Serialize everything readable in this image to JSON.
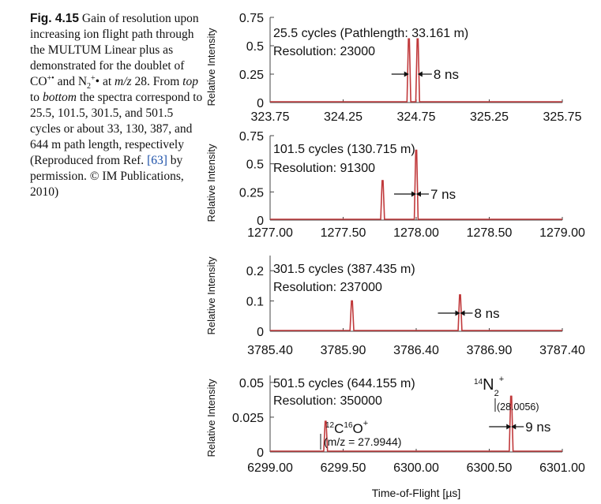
{
  "caption": {
    "label": "Fig. 4.15",
    "part1": "Gain of resolution upon increasing ion flight path through the MULTUM Linear plus as demonstrated for the doublet of CO",
    "sup1": "+•",
    "part2": " and N",
    "sub2": "2",
    "sup2": "+",
    "part3": "• at ",
    "mz": "m/z",
    "part4": " 28. From ",
    "top": "top",
    "part5": " to ",
    "bottom": "bottom",
    "part6": " the spectra correspond to 25.5, 101.5, 301.5, and 501.5 cycles or about 33, 130, 387, and 644 m path length, respectively (Reproduced from Ref. ",
    "ref": "[63]",
    "part7": " by permission. © IM Publications, 2010)"
  },
  "colors": {
    "trace": "#c0393b",
    "axis": "#444444"
  },
  "chart_data": [
    {
      "type": "line",
      "ylabel": "Relative Intensity",
      "xlim": [
        323.75,
        325.75
      ],
      "ylim": [
        0,
        0.75
      ],
      "xticks": [
        "323.75",
        "324.25",
        "324.75",
        "325.25",
        "325.75"
      ],
      "yticks": [
        "0",
        "0.25",
        "0.5",
        "0.75"
      ],
      "annotation": [
        "25.5 cycles (Pathlength: 33.161 m)",
        "Resolution: 23000"
      ],
      "peaks": [
        {
          "x": 324.7,
          "y": 0.56
        },
        {
          "x": 324.76,
          "y": 0.56
        }
      ],
      "gap_label": "8 ns"
    },
    {
      "type": "line",
      "ylabel": "Relative Intensity",
      "xlim": [
        1277.0,
        1279.0
      ],
      "ylim": [
        0,
        0.75
      ],
      "xticks": [
        "1277.00",
        "1277.50",
        "1278.00",
        "1278.50",
        "1279.00"
      ],
      "yticks": [
        "0",
        "0.25",
        "0.5",
        "0.75"
      ],
      "annotation": [
        "101.5 cycles  (130.715 m)",
        "Resolution: 91300"
      ],
      "peaks": [
        {
          "x": 1277.77,
          "y": 0.35
        },
        {
          "x": 1278.0,
          "y": 0.62
        }
      ],
      "gap_label": "7 ns"
    },
    {
      "type": "line",
      "ylabel": "Relative Intensity",
      "xlim": [
        3785.4,
        3787.4
      ],
      "ylim": [
        0,
        0.25
      ],
      "xticks": [
        "3785.40",
        "3785.90",
        "3786.40",
        "3786.90",
        "3787.40"
      ],
      "yticks": [
        "0",
        "0.1",
        "0.2"
      ],
      "annotation": [
        "301.5 cycles (387.435 m)",
        "Resolution: 237000"
      ],
      "peaks": [
        {
          "x": 3785.96,
          "y": 0.1
        },
        {
          "x": 3786.7,
          "y": 0.12
        }
      ],
      "gap_label": "8 ns"
    },
    {
      "type": "line",
      "ylabel": "Relative Intensity",
      "xlabel": "Time-of-Flight [µs]",
      "xlim": [
        6299.0,
        6301.0
      ],
      "ylim": [
        0,
        0.055
      ],
      "xticks": [
        "6299.00",
        "6299.50",
        "6300.00",
        "6300.50",
        "6301.00"
      ],
      "yticks": [
        "0",
        "0.025",
        "0.05"
      ],
      "annotation": [
        "501.5 cycles (644.155 m)",
        "Resolution: 350000"
      ],
      "peaks": [
        {
          "x": 6299.38,
          "y": 0.022
        },
        {
          "x": 6300.65,
          "y": 0.04
        }
      ],
      "gap_label": "9 ns",
      "co_label": {
        "mass_c": "12",
        "c": "C",
        "mass_o": "16",
        "o": "O",
        "charge": "+",
        "mz": "(m/z = 27.9944)"
      },
      "n2_label": {
        "mass": "14",
        "n": "N",
        "sub": "2",
        "charge": "+",
        "mz": "(28.0056)"
      }
    }
  ]
}
